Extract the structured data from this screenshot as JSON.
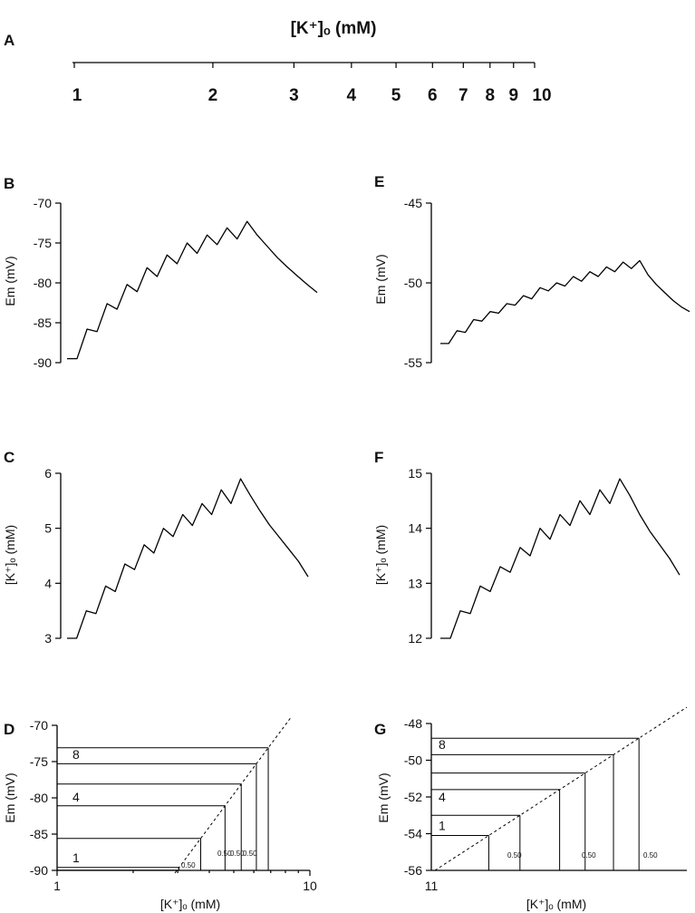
{
  "chart_data": [
    {
      "panel": "A",
      "type": "scale",
      "title": "[K⁺]ₒ (mM)",
      "scale": "log",
      "ticks": [
        "1",
        "2",
        "3",
        "4",
        "5",
        "6",
        "7",
        "8",
        "9",
        "10"
      ],
      "xlim": [
        1,
        10
      ]
    },
    {
      "panel": "B",
      "type": "line",
      "ylabel": "Em (mV)",
      "ylim": [
        -90,
        -70
      ],
      "yticks": [
        "-70",
        "-75",
        "-80",
        "-85",
        "-90"
      ],
      "y": [
        -89.5,
        -89.5,
        -85.8,
        -86.1,
        -82.6,
        -83.3,
        -80.2,
        -81.1,
        -78.1,
        -79.2,
        -76.5,
        -77.6,
        -75.0,
        -76.3,
        -74.0,
        -75.2,
        -73.1,
        -74.5,
        -72.3,
        -74.0,
        -75.4,
        -76.8,
        -78.0,
        -79.1,
        -80.2,
        -81.2
      ]
    },
    {
      "panel": "C",
      "type": "line",
      "ylabel": "[K⁺]ₒ (mM)",
      "ylim": [
        3,
        6
      ],
      "yticks": [
        "6",
        "5",
        "4",
        "3"
      ],
      "y": [
        3.0,
        3.0,
        3.5,
        3.45,
        3.95,
        3.85,
        4.35,
        4.25,
        4.7,
        4.55,
        5.0,
        4.85,
        5.25,
        5.05,
        5.45,
        5.25,
        5.7,
        5.45,
        5.9,
        5.6,
        5.32,
        5.06,
        4.84,
        4.62,
        4.4,
        4.12
      ]
    },
    {
      "panel": "D",
      "type": "line",
      "xlabel": "[K⁺]ₒ (mM)",
      "ylabel": "Em (mV)",
      "xscale": "log",
      "xlim": [
        1,
        10
      ],
      "xticks": [
        "1",
        "10"
      ],
      "ylim": [
        -90,
        -70
      ],
      "yticks": [
        "-70",
        "-75",
        "-80",
        "-85",
        "-90"
      ],
      "step_labels": [
        "1",
        "4",
        "8"
      ],
      "interval_labels": [
        "0.50",
        "0.50",
        "0.50",
        "0.50"
      ],
      "levels": [
        -89.6,
        -85.6,
        -81.1,
        -78.1,
        -75.3,
        -73.1
      ]
    },
    {
      "panel": "E",
      "type": "line",
      "ylabel": "Em (mV)",
      "ylim": [
        -55,
        -45
      ],
      "yticks": [
        "-45",
        "-50",
        "-55"
      ],
      "y": [
        -53.8,
        -53.8,
        -53.0,
        -53.1,
        -52.3,
        -52.4,
        -51.8,
        -51.9,
        -51.3,
        -51.4,
        -50.8,
        -51.0,
        -50.3,
        -50.5,
        -50.0,
        -50.2,
        -49.6,
        -49.9,
        -49.3,
        -49.6,
        -49.0,
        -49.3,
        -48.7,
        -49.1,
        -48.6,
        -49.5,
        -50.1,
        -50.6,
        -51.1,
        -51.5,
        -51.8
      ]
    },
    {
      "panel": "F",
      "type": "line",
      "ylabel": "[K⁺]ₒ (mM)",
      "ylim": [
        12,
        15
      ],
      "yticks": [
        "15",
        "14",
        "13",
        "12"
      ],
      "y": [
        12.0,
        12.0,
        12.5,
        12.45,
        12.95,
        12.85,
        13.3,
        13.2,
        13.65,
        13.5,
        14.0,
        13.8,
        14.25,
        14.05,
        14.5,
        14.25,
        14.7,
        14.45,
        14.9,
        14.6,
        14.25,
        13.95,
        13.7,
        13.45,
        13.15
      ]
    },
    {
      "panel": "G",
      "type": "line",
      "xlabel": "[K⁺]ₒ (mM)",
      "ylabel": "Em (mV)",
      "xticks": [
        "11"
      ],
      "ylim": [
        -56,
        -48
      ],
      "yticks": [
        "-48",
        "-50",
        "-52",
        "-54",
        "-56"
      ],
      "step_labels": [
        "1",
        "4",
        "8"
      ],
      "interval_labels": [
        "0.50",
        "0.50",
        "0.50"
      ],
      "levels": [
        -54.1,
        -53.0,
        -51.6,
        -50.7,
        -49.7,
        -48.8
      ]
    }
  ]
}
